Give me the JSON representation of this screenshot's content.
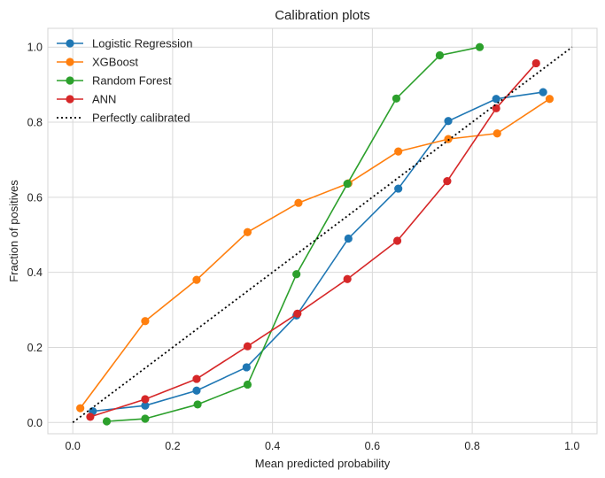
{
  "chart_data": {
    "type": "line",
    "title": "Calibration plots",
    "xlabel": "Mean predicted probability",
    "ylabel": "Fraction of positives",
    "xlim": [
      -0.05,
      1.05
    ],
    "ylim": [
      -0.03,
      1.05
    ],
    "xticks": [
      "0.0",
      "0.2",
      "0.4",
      "0.6",
      "0.8",
      "1.0"
    ],
    "yticks": [
      "0.0",
      "0.2",
      "0.4",
      "0.6",
      "0.8",
      "1.0"
    ],
    "grid": true,
    "legend_position": "top-left",
    "series": [
      {
        "name": "Logistic Regression",
        "color": "#1f77b4",
        "marker": "circle",
        "x": [
          0.04,
          0.145,
          0.248,
          0.348,
          0.448,
          0.552,
          0.652,
          0.752,
          0.848,
          0.942
        ],
        "y": [
          0.03,
          0.045,
          0.085,
          0.147,
          0.285,
          0.49,
          0.623,
          0.803,
          0.862,
          0.88
        ]
      },
      {
        "name": "XGBoost",
        "color": "#ff7f0e",
        "marker": "circle",
        "x": [
          0.015,
          0.145,
          0.248,
          0.35,
          0.452,
          0.552,
          0.652,
          0.752,
          0.85,
          0.955
        ],
        "y": [
          0.038,
          0.27,
          0.38,
          0.507,
          0.585,
          0.637,
          0.722,
          0.755,
          0.77,
          0.862
        ]
      },
      {
        "name": "Random Forest",
        "color": "#2ca02c",
        "marker": "circle",
        "x": [
          0.068,
          0.145,
          0.25,
          0.35,
          0.448,
          0.55,
          0.648,
          0.735,
          0.815
        ],
        "y": [
          0.003,
          0.01,
          0.048,
          0.101,
          0.395,
          0.636,
          0.863,
          0.978,
          1.0
        ]
      },
      {
        "name": "ANN",
        "color": "#d62728",
        "marker": "circle",
        "x": [
          0.035,
          0.145,
          0.248,
          0.35,
          0.45,
          0.55,
          0.65,
          0.75,
          0.848,
          0.928
        ],
        "y": [
          0.015,
          0.062,
          0.116,
          0.203,
          0.29,
          0.382,
          0.484,
          0.643,
          0.837,
          0.957
        ]
      },
      {
        "name": "Perfectly calibrated",
        "color": "#000000",
        "style": "dotted",
        "marker": "none",
        "x": [
          0.0,
          1.0
        ],
        "y": [
          0.0,
          1.0
        ]
      }
    ]
  }
}
